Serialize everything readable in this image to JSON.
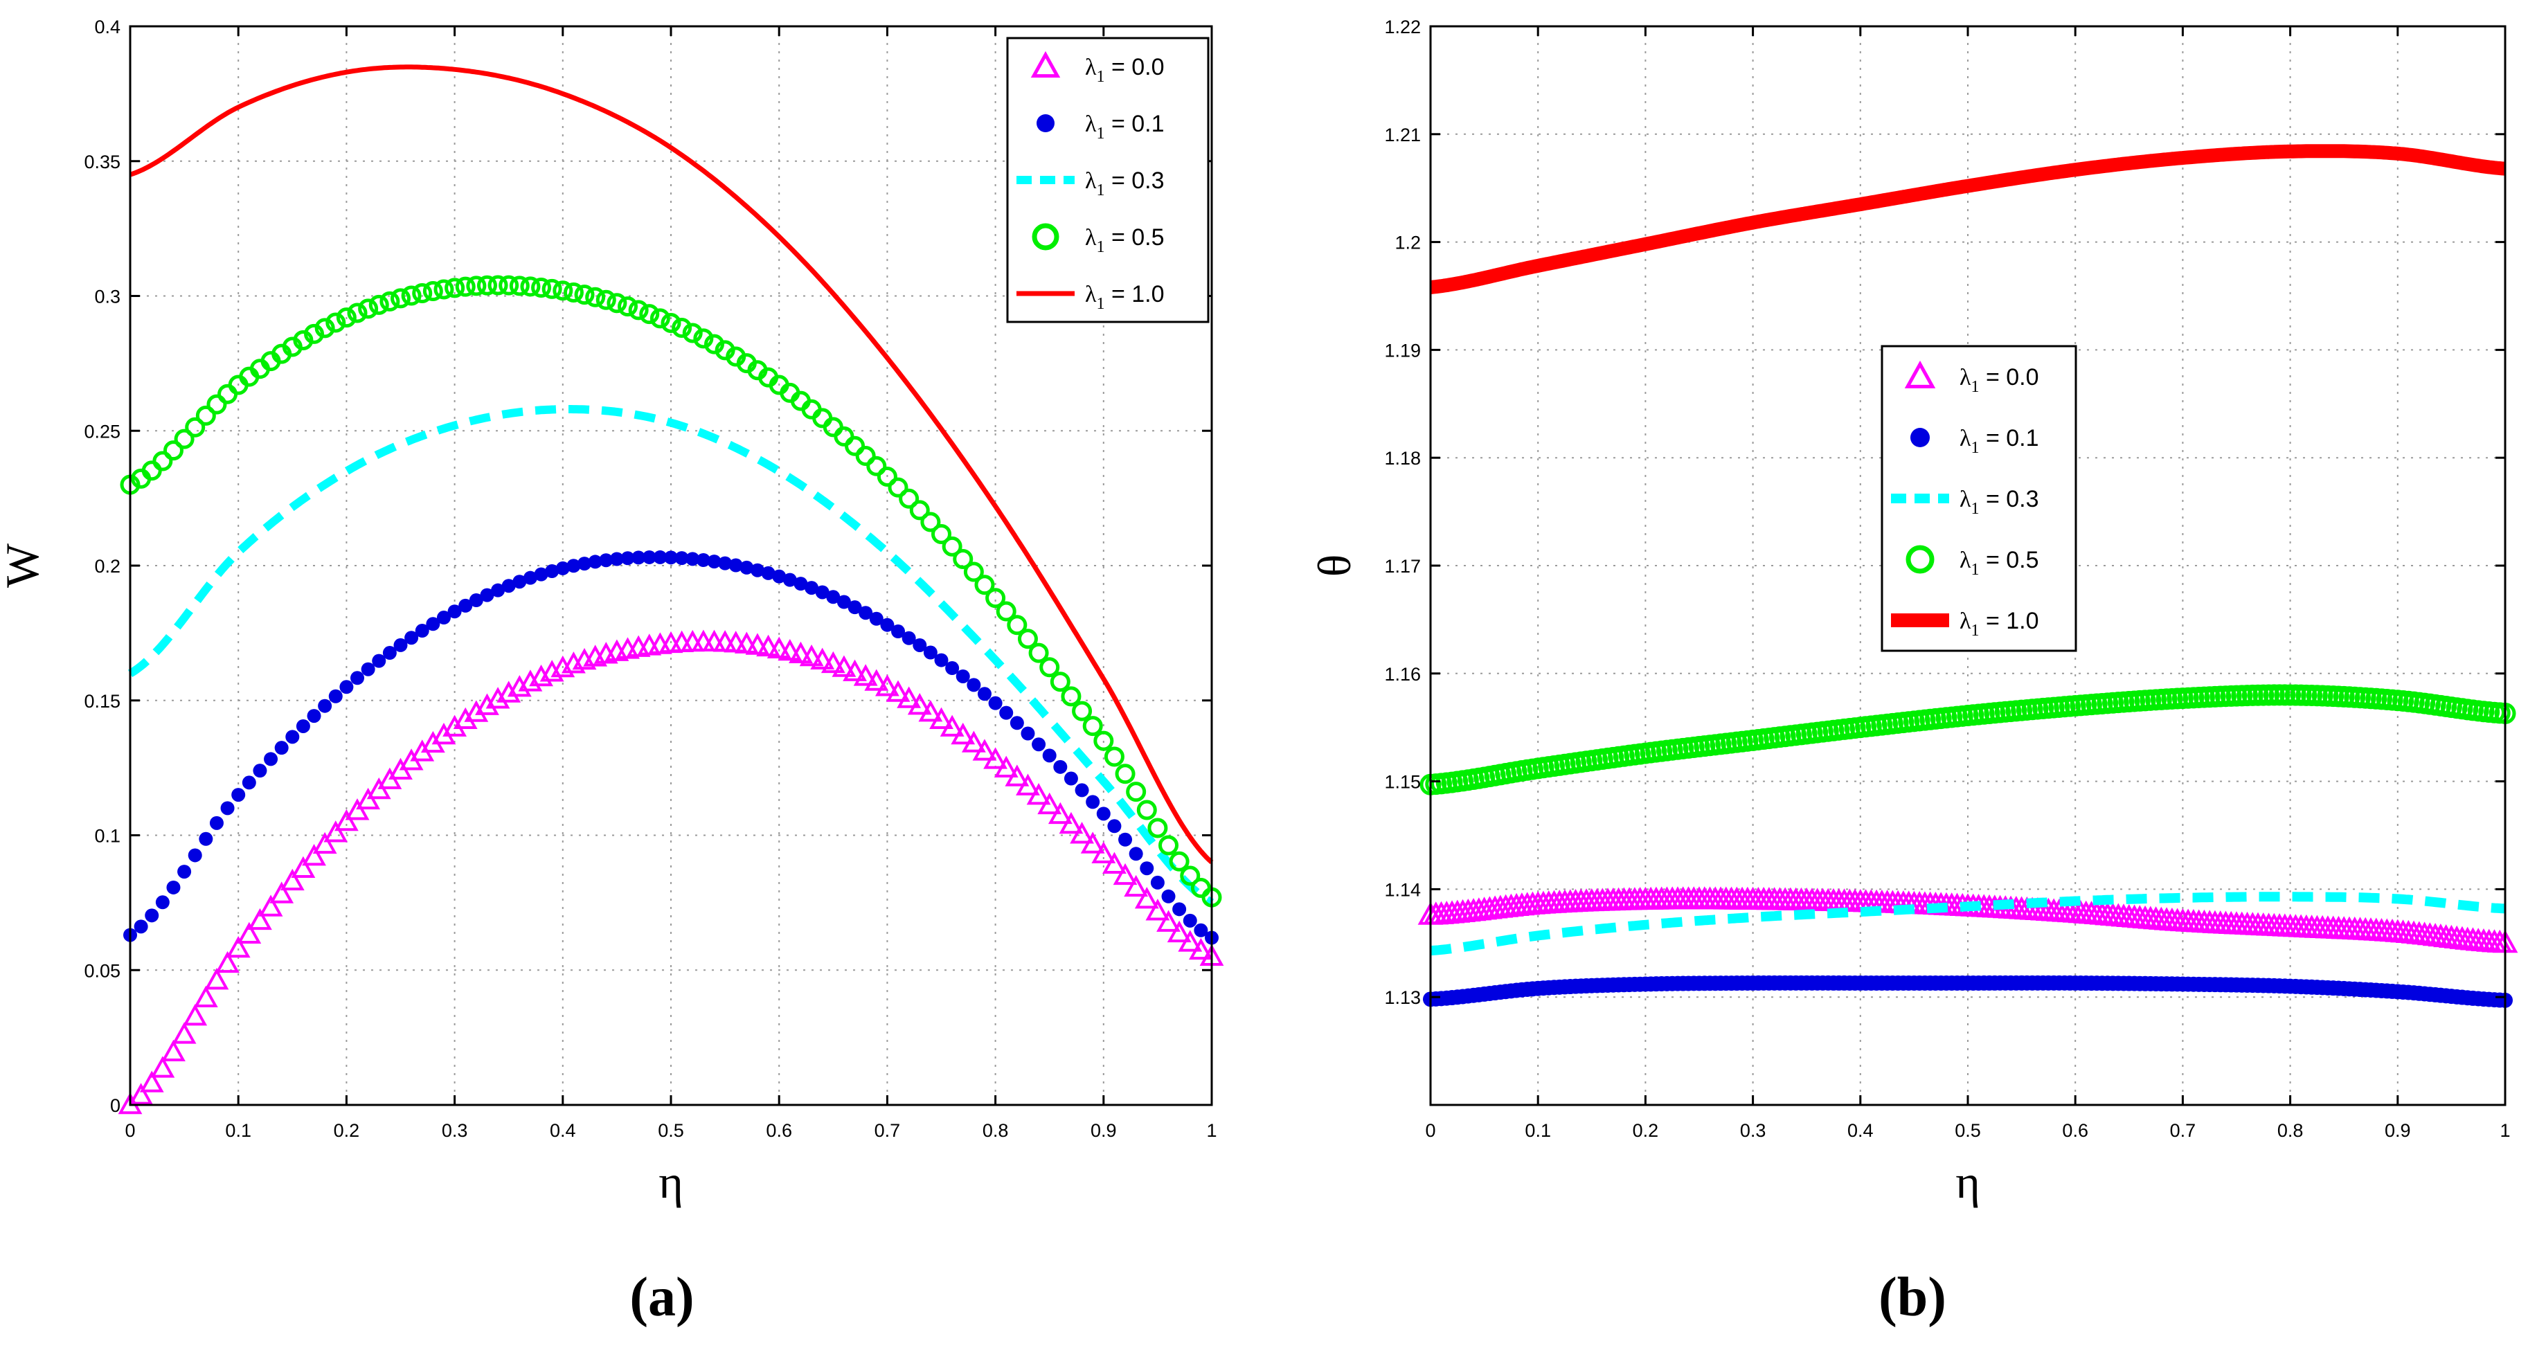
{
  "captions": [
    "(a)",
    "(b)"
  ],
  "chart_data": [
    {
      "type": "line",
      "panel_label": "(a)",
      "xlabel": "η",
      "ylabel": "W",
      "xlim": [
        0,
        1
      ],
      "ylim": [
        0,
        0.4
      ],
      "xticks": [
        "0",
        "0.1",
        "0.2",
        "0.3",
        "0.4",
        "0.5",
        "0.6",
        "0.7",
        "0.8",
        "0.9",
        "1"
      ],
      "yticks": [
        "0",
        "0.05",
        "0.1",
        "0.15",
        "0.2",
        "0.25",
        "0.3",
        "0.35",
        "0.4"
      ],
      "grid": true,
      "legend_position": "top-right",
      "x": [
        0,
        0.1,
        0.2,
        0.3,
        0.4,
        0.5,
        0.6,
        0.7,
        0.8,
        0.9,
        1.0
      ],
      "series": [
        {
          "name": "λ1 = 0.0",
          "label_main": "λ",
          "label_sub": "1",
          "label_value": " = 0.0",
          "style": "triangle",
          "color": "#ff00ff",
          "values": [
            0.0,
            0.058,
            0.105,
            0.14,
            0.162,
            0.171,
            0.169,
            0.155,
            0.128,
            0.093,
            0.055
          ]
        },
        {
          "name": "λ1 = 0.1",
          "label_main": "λ",
          "label_sub": "1",
          "label_value": " = 0.1",
          "style": "dot",
          "color": "#0000e0",
          "values": [
            0.063,
            0.115,
            0.155,
            0.183,
            0.199,
            0.203,
            0.196,
            0.178,
            0.149,
            0.108,
            0.062
          ]
        },
        {
          "name": "λ1 = 0.3",
          "label_main": "λ",
          "label_sub": "1",
          "label_value": " = 0.3",
          "style": "dash",
          "color": "#00ffff",
          "values": [
            0.16,
            0.205,
            0.235,
            0.252,
            0.258,
            0.253,
            0.235,
            0.205,
            0.165,
            0.12,
            0.075
          ]
        },
        {
          "name": "λ1 = 0.5",
          "label_main": "λ",
          "label_sub": "1",
          "label_value": " = 0.5",
          "style": "circle",
          "color": "#00ee00",
          "values": [
            0.23,
            0.267,
            0.292,
            0.303,
            0.302,
            0.29,
            0.267,
            0.233,
            0.188,
            0.135,
            0.077
          ]
        },
        {
          "name": "λ1 = 1.0",
          "label_main": "λ",
          "label_sub": "1",
          "label_value": " = 1.0",
          "style": "solid",
          "color": "#ff0000",
          "values": [
            0.345,
            0.37,
            0.383,
            0.384,
            0.375,
            0.355,
            0.322,
            0.277,
            0.222,
            0.158,
            0.09
          ]
        }
      ]
    },
    {
      "type": "line",
      "panel_label": "(b)",
      "xlabel": "η",
      "ylabel": "θ",
      "xlim": [
        0,
        1
      ],
      "ylim": [
        1.12,
        1.22
      ],
      "xticks": [
        "0",
        "0.1",
        "0.2",
        "0.3",
        "0.4",
        "0.5",
        "0.6",
        "0.7",
        "0.8",
        "0.9",
        "1"
      ],
      "yticks": [
        "1.13",
        "1.14",
        "1.15",
        "1.16",
        "1.17",
        "1.18",
        "1.19",
        "1.2",
        "1.21",
        "1.22"
      ],
      "grid": true,
      "legend_position": "center",
      "x": [
        0,
        0.1,
        0.2,
        0.3,
        0.4,
        0.5,
        0.6,
        0.7,
        0.8,
        0.9,
        1.0
      ],
      "series": [
        {
          "name": "λ1 = 0.0",
          "label_main": "λ",
          "label_sub": "1",
          "label_value": " = 0.0",
          "style": "triangle",
          "color": "#ff00ff",
          "values": [
            1.1376,
            1.1386,
            1.139,
            1.139,
            1.1388,
            1.1384,
            1.1378,
            1.137,
            1.1365,
            1.136,
            1.135
          ]
        },
        {
          "name": "λ1 = 0.1",
          "label_main": "λ",
          "label_sub": "1",
          "label_value": " = 0.1",
          "style": "dot",
          "color": "#0000e0",
          "values": [
            1.1298,
            1.1308,
            1.1312,
            1.1313,
            1.1313,
            1.1313,
            1.1313,
            1.1312,
            1.131,
            1.1305,
            1.1297
          ]
        },
        {
          "name": "λ1 = 0.3",
          "label_main": "λ",
          "label_sub": "1",
          "label_value": " = 0.3",
          "style": "dash",
          "color": "#00ffff",
          "values": [
            1.1343,
            1.1357,
            1.1367,
            1.1374,
            1.1379,
            1.1384,
            1.1389,
            1.1392,
            1.1393,
            1.1391,
            1.1382
          ]
        },
        {
          "name": "λ1 = 0.5",
          "label_main": "λ",
          "label_sub": "1",
          "label_value": " = 0.5",
          "style": "circle",
          "color": "#00ee00",
          "values": [
            1.1497,
            1.1512,
            1.1526,
            1.1538,
            1.155,
            1.1561,
            1.157,
            1.1577,
            1.158,
            1.1575,
            1.1563
          ]
        },
        {
          "name": "λ1 = 1.0",
          "label_main": "λ",
          "label_sub": "1",
          "label_value": " = 1.0",
          "style": "solid",
          "color": "#ff0000",
          "values": [
            1.1958,
            1.1978,
            1.1998,
            1.2018,
            1.2035,
            1.2052,
            1.2067,
            1.2078,
            1.2084,
            1.2082,
            1.2068
          ]
        }
      ]
    }
  ]
}
